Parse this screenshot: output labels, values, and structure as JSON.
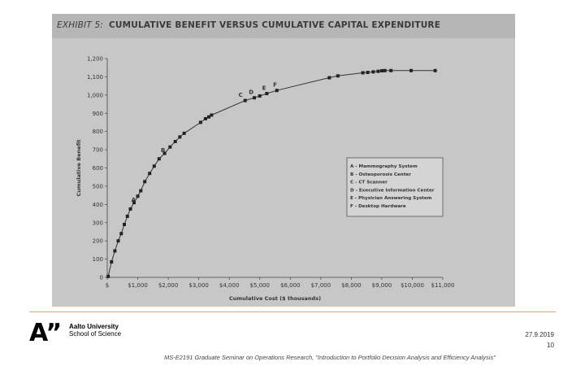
{
  "exhibit": {
    "label": "EXHIBIT 5:",
    "title": "CUMULATIVE BENEFIT VERSUS CUMULATIVE CAPITAL EXPENDITURE"
  },
  "chart_data": {
    "type": "line",
    "xlabel": "Cumulative Cost ($ thousands)",
    "ylabel": "Cumulative Benefit",
    "xlim": [
      0,
      11000
    ],
    "ylim": [
      0,
      1200
    ],
    "x_ticks": [
      0,
      1000,
      2000,
      3000,
      4000,
      5000,
      6000,
      7000,
      8000,
      9000,
      10000,
      11000
    ],
    "x_tick_labels": [
      "$",
      "$1,000",
      "$2,000",
      "$3,000",
      "$4,000",
      "$5,000",
      "$6,000",
      "$7,000",
      "$8,000",
      "$9,000",
      "$10,000",
      "$11,000"
    ],
    "y_ticks": [
      0,
      100,
      200,
      300,
      400,
      500,
      600,
      700,
      800,
      900,
      1000,
      1100,
      1200
    ],
    "y_tick_labels": [
      "0",
      "100",
      "200",
      "300",
      "400",
      "500",
      "600",
      "700",
      "800",
      "900",
      "1,000",
      "1,100",
      "1,200"
    ],
    "points": [
      [
        30,
        5
      ],
      [
        140,
        85
      ],
      [
        250,
        145
      ],
      [
        360,
        200
      ],
      [
        460,
        240
      ],
      [
        560,
        290
      ],
      [
        660,
        335
      ],
      [
        760,
        375
      ],
      [
        880,
        410
      ],
      [
        1000,
        445
      ],
      [
        1100,
        475
      ],
      [
        1230,
        525
      ],
      [
        1390,
        570
      ],
      [
        1540,
        610
      ],
      [
        1700,
        650
      ],
      [
        1880,
        680
      ],
      [
        2060,
        715
      ],
      [
        2230,
        745
      ],
      [
        2380,
        770
      ],
      [
        2520,
        790
      ],
      [
        3060,
        850
      ],
      [
        3220,
        870
      ],
      [
        3330,
        880
      ],
      [
        3420,
        890
      ],
      [
        4520,
        970
      ],
      [
        4820,
        985
      ],
      [
        5000,
        995
      ],
      [
        5230,
        1008
      ],
      [
        5560,
        1025
      ],
      [
        7280,
        1095
      ],
      [
        7560,
        1105
      ],
      [
        8380,
        1122
      ],
      [
        8540,
        1124
      ],
      [
        8720,
        1127
      ],
      [
        8880,
        1130
      ],
      [
        9000,
        1133
      ],
      [
        9100,
        1134
      ],
      [
        9300,
        1134
      ],
      [
        9960,
        1134
      ],
      [
        10750,
        1134
      ]
    ],
    "annotations": [
      {
        "label": "A",
        "x": 860,
        "y": 415
      },
      {
        "label": "B",
        "x": 1830,
        "y": 688
      },
      {
        "label": "C",
        "x": 4370,
        "y": 990
      },
      {
        "label": "D",
        "x": 4720,
        "y": 1006
      },
      {
        "label": "E",
        "x": 5140,
        "y": 1028
      },
      {
        "label": "F",
        "x": 5500,
        "y": 1045
      }
    ],
    "legend": {
      "position": "center-right",
      "entries": [
        "A - Mammography System",
        "B - Osteoporosis Center",
        "C - CT Scanner",
        "D - Executive Information Center",
        "E - Physician Answering System",
        "F - Desktop Hardware"
      ]
    }
  },
  "footer": {
    "university": "Aalto University",
    "school": "School of Science",
    "date": "27.9.2019",
    "page": "10",
    "citation": "MS-E2191 Graduate Seminar on Operations Research, \"Introduction to Portfolio Decision Analysis and Efficiency Analysis\""
  }
}
